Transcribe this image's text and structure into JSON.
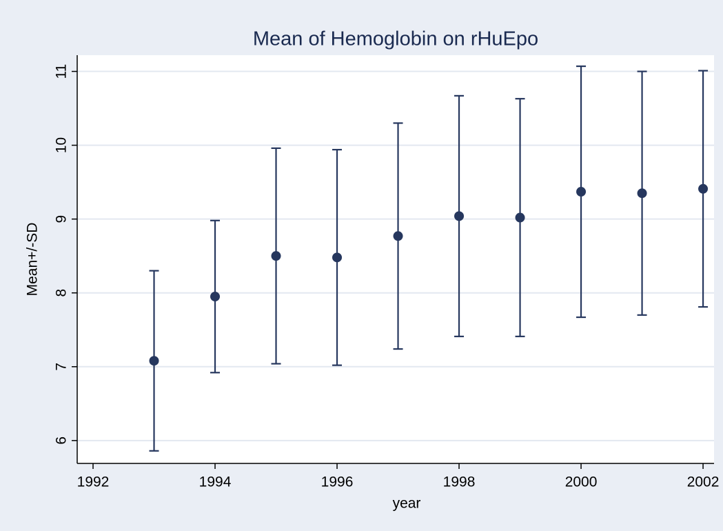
{
  "chart_data": {
    "type": "errorbar",
    "title": "Mean of Hemoglobin on rHuEpo",
    "x_label": "year",
    "y_label": "Mean+/-SD",
    "x": [
      1993,
      1994,
      1995,
      1996,
      1997,
      1998,
      1999,
      2000,
      2001,
      2002
    ],
    "values": [
      7.08,
      7.95,
      8.5,
      8.48,
      8.77,
      9.04,
      9.02,
      9.37,
      9.35,
      9.41
    ],
    "errors": [
      1.22,
      1.03,
      1.46,
      1.46,
      1.53,
      1.63,
      1.61,
      1.7,
      1.65,
      1.6
    ],
    "color": "#26375e",
    "xlim": [
      1991.74,
      2002.18
    ],
    "xticks": [
      1992,
      1994,
      1996,
      1998,
      2000,
      2002
    ],
    "ylim": [
      5.69,
      11.22
    ],
    "yticks": [
      6,
      7,
      8,
      9,
      10,
      11
    ],
    "grid": true
  }
}
